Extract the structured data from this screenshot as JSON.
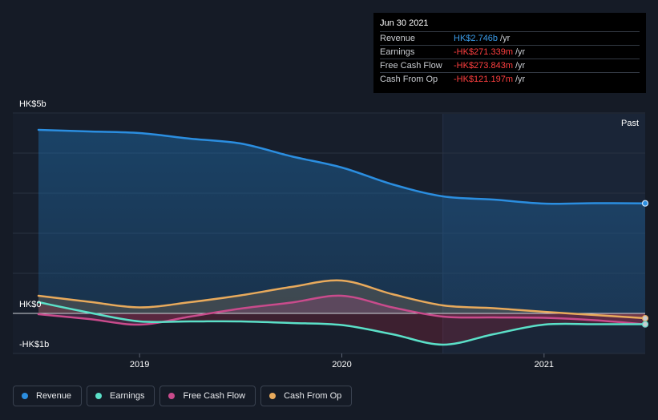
{
  "tooltip": {
    "date": "Jun 30 2021",
    "rows": [
      {
        "label": "Revenue",
        "value": "HK$2.746b",
        "unit": "/yr",
        "sign": "pos"
      },
      {
        "label": "Earnings",
        "value": "-HK$271.339m",
        "unit": "/yr",
        "sign": "neg"
      },
      {
        "label": "Free Cash Flow",
        "value": "-HK$273.843m",
        "unit": "/yr",
        "sign": "neg"
      },
      {
        "label": "Cash From Op",
        "value": "-HK$121.197m",
        "unit": "/yr",
        "sign": "neg"
      }
    ]
  },
  "legend": [
    {
      "label": "Revenue",
      "color": "#2b8ee0"
    },
    {
      "label": "Earnings",
      "color": "#5be0c8"
    },
    {
      "label": "Free Cash Flow",
      "color": "#c94b8c"
    },
    {
      "label": "Cash From Op",
      "color": "#e8aa5c"
    }
  ],
  "chart_data": {
    "type": "area",
    "y_labels": {
      "top": "HK$5b",
      "zero": "HK$0",
      "bottom": "-HK$1b"
    },
    "ylim": [
      -1.0,
      5.0
    ],
    "y_unit": "HK$b",
    "x_range": [
      2018.5,
      2021.5
    ],
    "x_ticks": [
      2019,
      2020,
      2021
    ],
    "past_label": "Past",
    "past_start": 2020.5,
    "series": [
      {
        "name": "Revenue",
        "color": "#2b8ee0",
        "points": [
          [
            2018.5,
            4.58
          ],
          [
            2018.75,
            4.54
          ],
          [
            2019.0,
            4.5
          ],
          [
            2019.25,
            4.36
          ],
          [
            2019.5,
            4.24
          ],
          [
            2019.75,
            3.92
          ],
          [
            2020.0,
            3.64
          ],
          [
            2020.25,
            3.22
          ],
          [
            2020.5,
            2.92
          ],
          [
            2020.75,
            2.84
          ],
          [
            2021.0,
            2.74
          ],
          [
            2021.25,
            2.75
          ],
          [
            2021.5,
            2.746
          ]
        ]
      },
      {
        "name": "Cash From Op",
        "color": "#e8aa5c",
        "points": [
          [
            2018.5,
            0.44
          ],
          [
            2018.75,
            0.29
          ],
          [
            2019.0,
            0.15
          ],
          [
            2019.25,
            0.28
          ],
          [
            2019.5,
            0.45
          ],
          [
            2019.75,
            0.66
          ],
          [
            2020.0,
            0.82
          ],
          [
            2020.25,
            0.48
          ],
          [
            2020.5,
            0.2
          ],
          [
            2020.75,
            0.13
          ],
          [
            2021.0,
            0.04
          ],
          [
            2021.25,
            -0.04
          ],
          [
            2021.5,
            -0.121
          ]
        ]
      },
      {
        "name": "Free Cash Flow",
        "color": "#c94b8c",
        "points": [
          [
            2018.5,
            -0.02
          ],
          [
            2018.75,
            -0.14
          ],
          [
            2019.0,
            -0.28
          ],
          [
            2019.25,
            -0.08
          ],
          [
            2019.5,
            0.12
          ],
          [
            2019.75,
            0.27
          ],
          [
            2020.0,
            0.44
          ],
          [
            2020.25,
            0.15
          ],
          [
            2020.5,
            -0.08
          ],
          [
            2020.75,
            -0.1
          ],
          [
            2021.0,
            -0.11
          ],
          [
            2021.25,
            -0.17
          ],
          [
            2021.5,
            -0.274
          ]
        ]
      },
      {
        "name": "Earnings",
        "color": "#5be0c8",
        "points": [
          [
            2018.5,
            0.28
          ],
          [
            2018.75,
            0.02
          ],
          [
            2019.0,
            -0.2
          ],
          [
            2019.25,
            -0.2
          ],
          [
            2019.5,
            -0.2
          ],
          [
            2019.75,
            -0.24
          ],
          [
            2020.0,
            -0.29
          ],
          [
            2020.25,
            -0.52
          ],
          [
            2020.5,
            -0.78
          ],
          [
            2020.75,
            -0.52
          ],
          [
            2021.0,
            -0.28
          ],
          [
            2021.25,
            -0.27
          ],
          [
            2021.5,
            -0.271
          ]
        ]
      }
    ]
  }
}
